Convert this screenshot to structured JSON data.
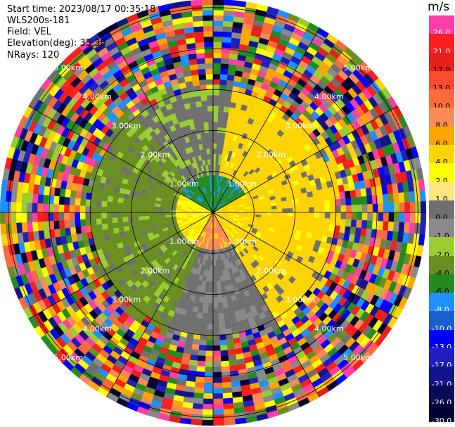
{
  "header": {
    "start_time": "Start time: 2023/08/17 00:35:18",
    "instrument": "WLS200s-181",
    "field": "Field: VEL",
    "elevation": "Elevation(deg): 35.30",
    "nrays": "NRays: 120"
  },
  "ppi": {
    "max_range_km": 5.2,
    "rings_km": [
      1,
      2,
      3,
      4,
      5
    ],
    "ring_labels": [
      "1.00km",
      "2.00km",
      "3.00km",
      "4.00km",
      "5.00km"
    ],
    "spoke_angles_deg": [
      0,
      30,
      60,
      90,
      120,
      150,
      180,
      210,
      240,
      270,
      300,
      330
    ],
    "nrays": 120
  },
  "colorbar": {
    "unit": "m/s",
    "labels": [
      "26.0",
      "21.0",
      "17.0",
      "13.0",
      "10.0",
      "8.0",
      "6.0",
      "4.0",
      "2.0",
      "1.0",
      "0.0",
      "-1.0",
      "-2.0",
      "-4.0",
      "-6.0",
      "-8.0",
      "-10.0",
      "-13.0",
      "-17.0",
      "-21.0",
      "-26.0",
      "-30.0"
    ],
    "colors": [
      "#ff3fa7",
      "#ff1f1f",
      "#e8201a",
      "#ff4c2e",
      "#ff6a3a",
      "#ff8a55",
      "#ffa500",
      "#ffd400",
      "#ffff00",
      "#ffe680",
      "#707070",
      "#8a8a8a",
      "#9acd32",
      "#6b8e23",
      "#228b22",
      "#1e90ff",
      "#1a5fd0",
      "#0000ff",
      "#2020c0",
      "#14148a",
      "#0a0a55",
      "#000033"
    ]
  }
}
